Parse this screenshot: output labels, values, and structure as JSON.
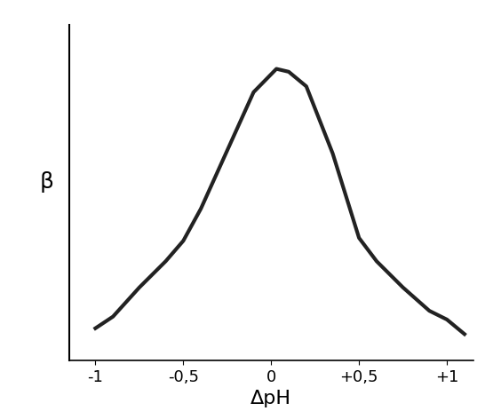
{
  "chart_data": {
    "type": "line",
    "x_label": "ΔpH",
    "y_label": "β",
    "x": [
      -1,
      -0.9,
      -0.75,
      -0.6,
      -0.5,
      -0.4,
      -0.25,
      -0.1,
      0.03,
      0.1,
      0.2,
      0.35,
      0.5,
      0.6,
      0.75,
      0.9,
      1,
      1.1
    ],
    "values": [
      0.11,
      0.15,
      0.25,
      0.34,
      0.41,
      0.52,
      0.72,
      0.92,
      1.0,
      0.99,
      0.94,
      0.71,
      0.42,
      0.34,
      0.25,
      0.17,
      0.14,
      0.09
    ],
    "color": "#222222",
    "xlim": [
      -1.15,
      1.15
    ],
    "ylim": [
      0,
      1.15
    ],
    "xticks": [
      -1,
      {
        "value": -0.5,
        "label": "-0,5"
      },
      0,
      {
        "value": 0.5,
        "label": "+0,5"
      },
      {
        "value": 1,
        "label": "+1"
      }
    ],
    "yticks": [],
    "tick_labels": "x",
    "grid": false
  }
}
